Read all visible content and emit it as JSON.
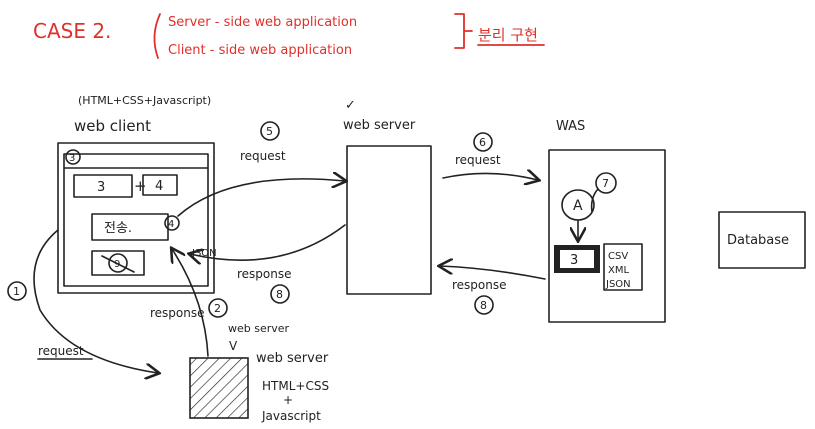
{
  "header": {
    "case_label": "CASE 2.",
    "line1": "Server - side web application",
    "line2": "Client - side web application",
    "korean_note": "분리 구현"
  },
  "client": {
    "tech": "(HTML+CSS+Javascript)",
    "title": "web client",
    "step_num": "3",
    "operand_a": "3",
    "plus": "+",
    "operand_b": "4",
    "submit_label": "전송.",
    "submit_step": "4",
    "result_step": "9",
    "json_label": "JSON"
  },
  "web_server": {
    "check": "✓",
    "title": "web server"
  },
  "was": {
    "title": "WAS",
    "node_a": "A",
    "step7": "7",
    "result": "3",
    "formats": [
      "CSV",
      "XML",
      "JSON"
    ]
  },
  "database": {
    "label": "Database"
  },
  "flows": {
    "step5": "5",
    "step5_label": "request",
    "step8_left": "8",
    "step8_left_label": "response",
    "step6": "6",
    "step6_label": "request",
    "step8_right": "8",
    "step8_right_label": "response",
    "step1": "1",
    "step1_label": "request",
    "step2": "2",
    "step2_label": "response"
  },
  "static_server": {
    "label_top": "web server",
    "check": "V",
    "label": "web server",
    "content_line1": "HTML+CSS",
    "content_line2": "+",
    "content_line3": "Javascript"
  }
}
